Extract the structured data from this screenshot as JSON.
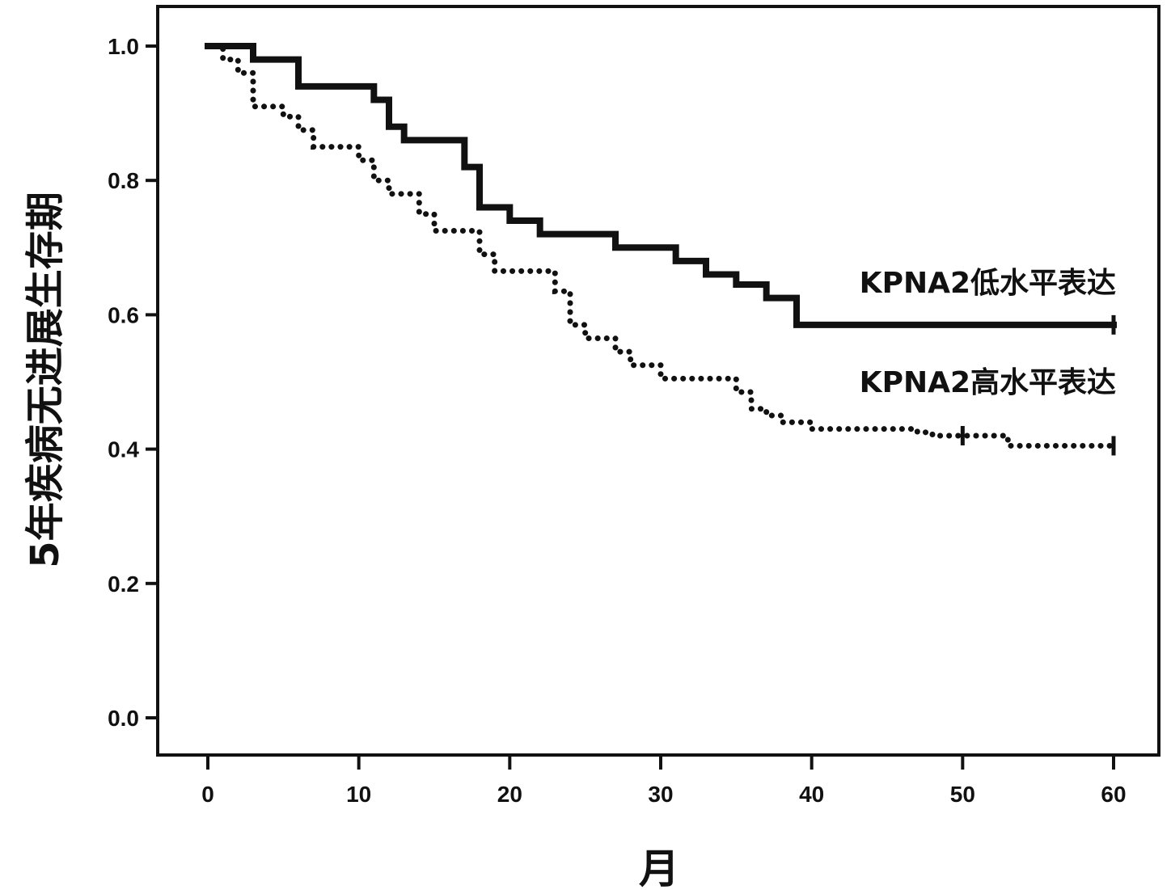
{
  "chart_data": {
    "type": "line",
    "title": "",
    "xlabel": "月",
    "ylabel": "5年疾病无进展生存期",
    "xlim": [
      0,
      60
    ],
    "ylim": [
      0.0,
      1.0
    ],
    "xticks": [
      0,
      10,
      20,
      30,
      40,
      50,
      60
    ],
    "xtick_labels": [
      "0",
      "10",
      "20",
      "30",
      "40",
      "50",
      "60"
    ],
    "yticks": [
      0.0,
      0.2,
      0.4,
      0.6,
      0.8,
      1.0
    ],
    "ytick_labels": [
      "0.0",
      "0.2",
      "0.4",
      "0.6",
      "0.8",
      "1.0"
    ],
    "grid": false,
    "series": [
      {
        "name": "KPNA2低水平表达",
        "style": "solid",
        "color": "#111111",
        "step": true,
        "x": [
          0,
          3,
          6,
          11,
          12,
          13,
          17,
          18,
          20,
          22,
          27,
          31,
          33,
          35,
          37,
          39,
          60
        ],
        "y": [
          1.0,
          0.98,
          0.94,
          0.92,
          0.88,
          0.86,
          0.82,
          0.76,
          0.74,
          0.72,
          0.7,
          0.68,
          0.66,
          0.645,
          0.625,
          0.585,
          0.585
        ],
        "censored_x": [
          60
        ]
      },
      {
        "name": "KPNA2高水平表达",
        "style": "dotted",
        "color": "#111111",
        "step": true,
        "x": [
          0,
          1,
          2,
          3,
          5,
          6,
          7,
          10,
          11,
          12,
          14,
          15,
          18,
          19,
          23,
          24,
          25,
          27,
          28,
          30,
          35,
          36,
          37,
          38,
          40,
          47,
          48,
          53,
          60
        ],
        "y": [
          1.0,
          0.98,
          0.96,
          0.91,
          0.895,
          0.875,
          0.85,
          0.83,
          0.8,
          0.78,
          0.75,
          0.725,
          0.69,
          0.665,
          0.635,
          0.585,
          0.565,
          0.545,
          0.525,
          0.505,
          0.485,
          0.46,
          0.45,
          0.44,
          0.43,
          0.425,
          0.42,
          0.405,
          0.405
        ],
        "censored_x": [
          50,
          60
        ]
      }
    ]
  }
}
